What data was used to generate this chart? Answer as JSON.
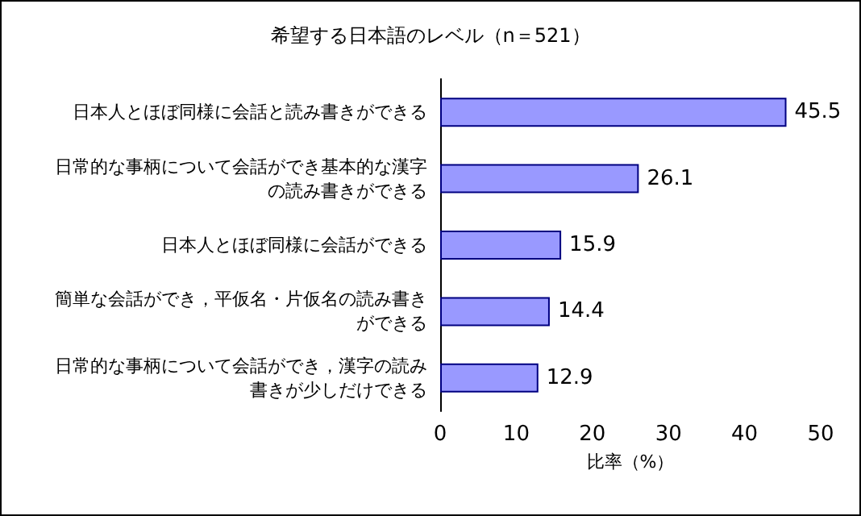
{
  "chart_data": {
    "type": "bar",
    "orientation": "horizontal",
    "title": "希望する日本語のレベル（n＝521）",
    "xlabel": "比率（%）",
    "categories": [
      "日本人とほぼ同様に会話と読み書きができる",
      "日常的な事柄について会話ができ基本的な漢字の読み書きができる",
      "日本人とほぼ同様に会話ができる",
      "簡単な会話ができ，平仮名・片仮名の読み書きができる",
      "日常的な事柄について会話ができ，漢字の読み書きが少しだけできる"
    ],
    "values": [
      45.5,
      26.1,
      15.9,
      14.4,
      12.9
    ],
    "color": "#9999ff",
    "xlim": [
      0,
      50
    ],
    "xticks": [
      0,
      10,
      20,
      30,
      40,
      50
    ],
    "grid": false,
    "data_labels": true
  }
}
